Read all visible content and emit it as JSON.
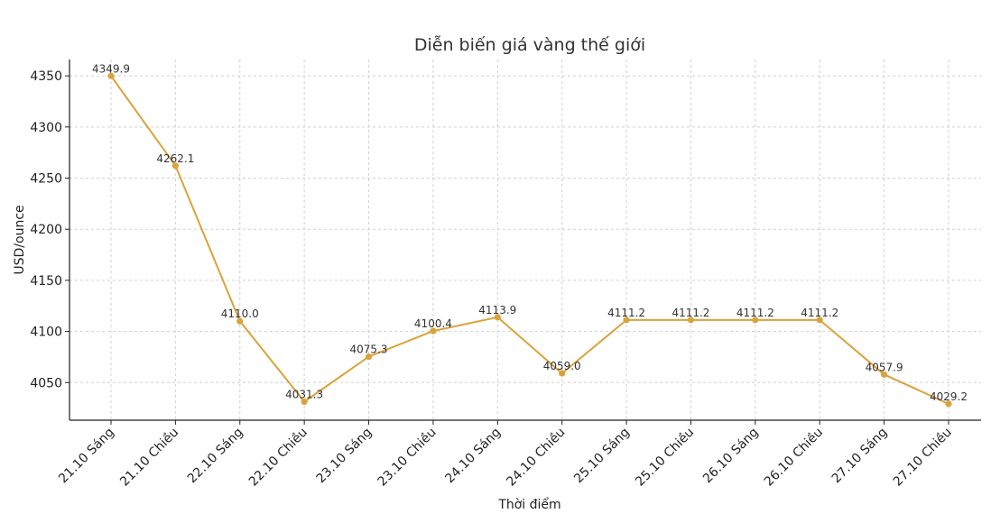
{
  "chart_data": {
    "type": "line",
    "title": "Diễn biến giá vàng thế giới",
    "xlabel": "Thời điểm",
    "ylabel": "USD/ounce",
    "categories": [
      "21.10 Sáng",
      "21.10 Chiều",
      "22.10 Sáng",
      "22.10 Chiều",
      "23.10 Sáng",
      "23.10 Chiều",
      "24.10 Sáng",
      "24.10 Chiều",
      "25.10 Sáng",
      "25.10 Chiều",
      "26.10 Sáng",
      "26.10 Chiều",
      "27.10 Sáng",
      "27.10 Chiều"
    ],
    "series": [
      {
        "values": [
          4349.9,
          4262.1,
          4110.0,
          4031.3,
          4075.3,
          4100.4,
          4113.9,
          4059.0,
          4111.2,
          4111.2,
          4111.2,
          4111.2,
          4057.9,
          4029.2
        ],
        "labels": [
          "4349.9",
          "4262.1",
          "4110.0",
          "4031.3",
          "4075.3",
          "4100.4",
          "4113.9",
          "4059.0",
          "4111.2",
          "4111.2",
          "4111.2",
          "4111.2",
          "4057.9",
          "4029.2"
        ],
        "color": "#DAA33A"
      }
    ],
    "yticks": [
      "4050",
      "4100",
      "4150",
      "4200",
      "4250",
      "4300",
      "4350"
    ],
    "ylim": [
      4013.2,
      4366.0
    ],
    "grid": true
  }
}
